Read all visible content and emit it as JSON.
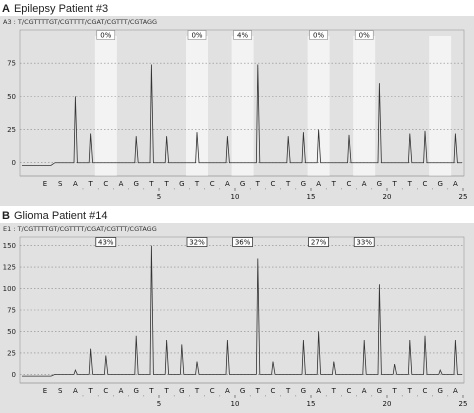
{
  "panels": [
    {
      "letter": "A",
      "title": "Epilepsy Patient #3",
      "sequence_label": "A3 : T/CGTTTTGT/CGTTTT/CGAT/CGTTT/CGTAGG",
      "boxed_labels": false
    },
    {
      "letter": "B",
      "title": "Glioma Patient #14",
      "sequence_label": "E1 : T/CGTTTTGT/CGTTTT/CGAT/CGTTT/CGTAGG",
      "boxed_labels": true
    }
  ],
  "chart_data": [
    {
      "type": "line",
      "title": "Epilepsy Patient #3",
      "dispensation_order": [
        "E",
        "S",
        "A",
        "T",
        "C",
        "A",
        "G",
        "T",
        "T",
        "G",
        "T",
        "C",
        "A",
        "G",
        "T",
        "C",
        "T",
        "G",
        "A",
        "T",
        "C",
        "A",
        "G",
        "T",
        "T",
        "C",
        "G",
        "A"
      ],
      "x_ticks": [
        5,
        10,
        15,
        20,
        25
      ],
      "y_ticks": [
        0,
        25,
        50,
        75
      ],
      "ylim": [
        -10,
        100
      ],
      "peak_heights": [
        0,
        0,
        50,
        22,
        0,
        0,
        20,
        74,
        20,
        0,
        23,
        0,
        20,
        0,
        74,
        0,
        20,
        23,
        25,
        0,
        21,
        0,
        60,
        0,
        22,
        24,
        0,
        22
      ],
      "methylation_sites": [
        {
          "index": 4,
          "label": "0%"
        },
        {
          "index": 10,
          "label": "0%"
        },
        {
          "index": 13,
          "label": "4%"
        },
        {
          "index": 18,
          "label": "0%"
        },
        {
          "index": 21,
          "label": "0%"
        },
        {
          "index": 26,
          "label": ""
        }
      ],
      "grid": true
    },
    {
      "type": "line",
      "title": "Glioma Patient #14",
      "dispensation_order": [
        "E",
        "S",
        "A",
        "T",
        "C",
        "A",
        "G",
        "T",
        "T",
        "G",
        "T",
        "C",
        "A",
        "G",
        "T",
        "C",
        "T",
        "G",
        "A",
        "T",
        "C",
        "A",
        "G",
        "T",
        "T",
        "C",
        "G",
        "A"
      ],
      "x_ticks": [
        5,
        10,
        15,
        20,
        25
      ],
      "y_ticks": [
        0,
        25,
        50,
        75,
        100,
        125,
        150
      ],
      "ylim": [
        -10,
        160
      ],
      "peak_heights": [
        0,
        0,
        5,
        30,
        22,
        0,
        45,
        150,
        40,
        35,
        15,
        0,
        40,
        0,
        135,
        15,
        0,
        40,
        50,
        15,
        0,
        40,
        105,
        12,
        40,
        45,
        5,
        40
      ],
      "methylation_sites": [
        {
          "index": 4,
          "label": "43%"
        },
        {
          "index": 10,
          "label": "32%"
        },
        {
          "index": 13,
          "label": "36%"
        },
        {
          "index": 18,
          "label": "27%"
        },
        {
          "index": 21,
          "label": "33%"
        }
      ],
      "grid": true
    }
  ]
}
